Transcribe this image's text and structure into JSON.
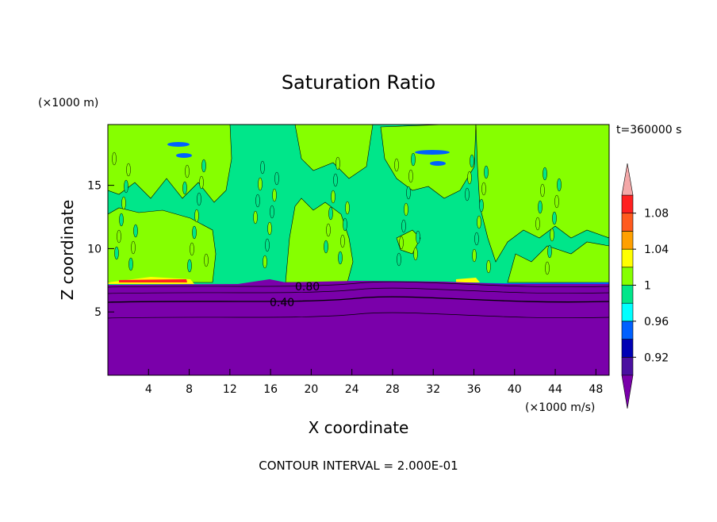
{
  "chart_data": {
    "type": "contour",
    "title": "Saturation Ratio",
    "x_label": "X coordinate",
    "y_label": "Z coordinate",
    "x_unit": "(×1000 m/s)",
    "y_unit": "(×1000 m)",
    "time_label": "t=360000 s",
    "footnote": "CONTOUR INTERVAL = 2.000E-01",
    "xlim": [
      0,
      49.3
    ],
    "xticks": [
      4,
      8,
      12,
      16,
      20,
      24,
      28,
      32,
      36,
      40,
      44,
      48
    ],
    "ylim": [
      0,
      19.8
    ],
    "yticks": [
      5,
      10,
      15
    ],
    "colorbar": {
      "levels": [
        0.9,
        0.92,
        0.94,
        0.96,
        0.98,
        1,
        1.02,
        1.04,
        1.06,
        1.08,
        1.1
      ],
      "colors": [
        "#7a00aa",
        "#4a10a0",
        "#0000b4",
        "#0060ff",
        "#00ffff",
        "#00e68a",
        "#86ff00",
        "#ffff00",
        "#ffa000",
        "#ff5a1e",
        "#ff2020",
        "#f4a8a8"
      ],
      "ticks": [
        {
          "value": 0.92,
          "label": "0.92"
        },
        {
          "value": 0.96,
          "label": "0.96"
        },
        1,
        {
          "value": 1.04,
          "label": "1.04"
        },
        {
          "value": 1.08,
          "label": "1.08"
        }
      ]
    },
    "contour_labels": [
      {
        "value": 0.8,
        "label": "0.80"
      },
      {
        "value": 0.4,
        "label": "0.40"
      }
    ]
  }
}
